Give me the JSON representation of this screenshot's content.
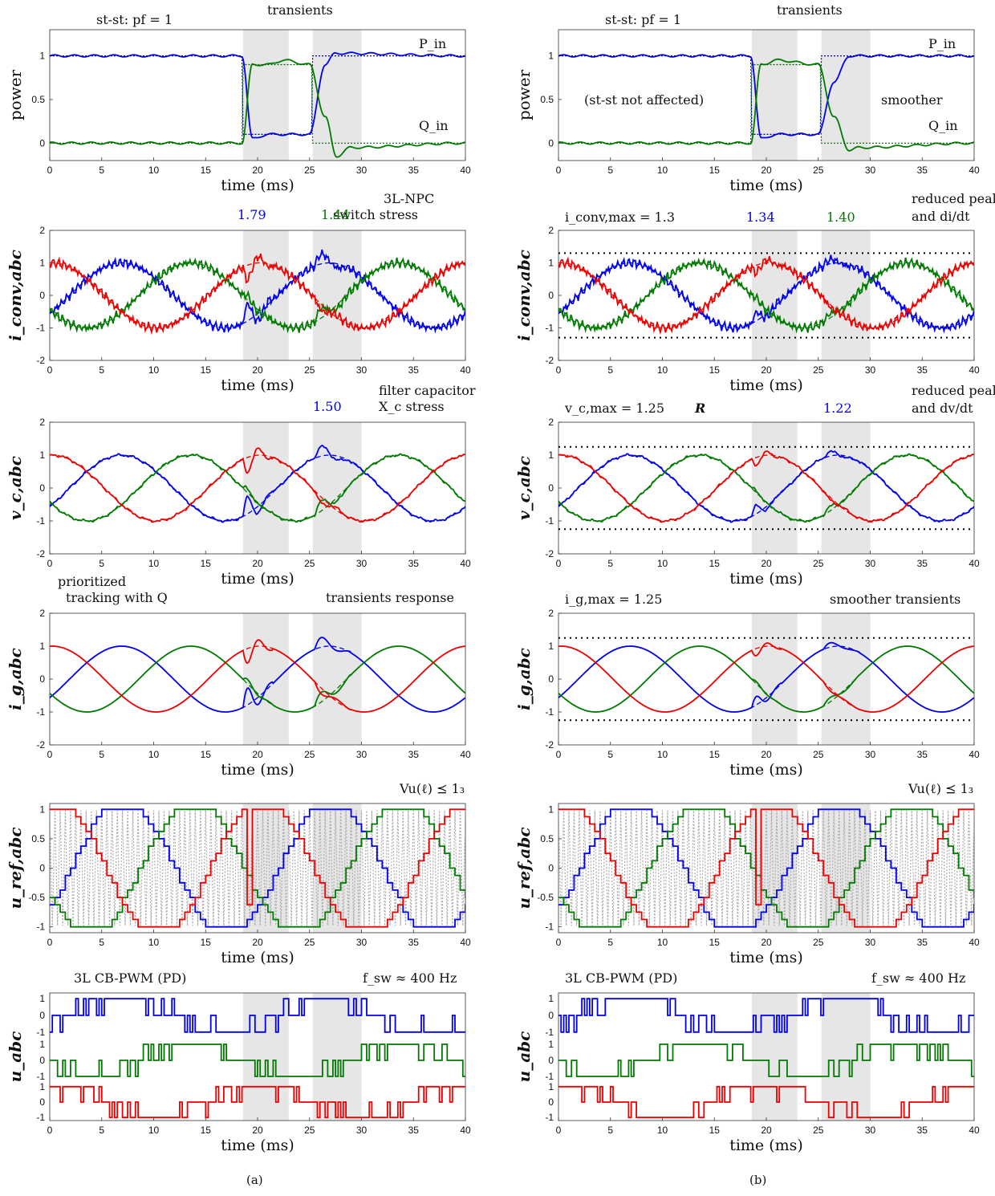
{
  "colors": {
    "a": "#0000ee",
    "b": "#007a00",
    "c": "#ee0000",
    "shade": "#e6e6e6",
    "dot": "#000000",
    "carrier": "#aaaaaa"
  },
  "xlabel": "time (ms)",
  "captions": [
    "(a)",
    "(b)"
  ],
  "ylabels": {
    "power": "power",
    "iconv": "i_conv,abc",
    "vc": "v_c,abc",
    "ig": "i_g,abc",
    "uref": "u_ref,abc",
    "uabc": "u_abc"
  },
  "annotations": {
    "a": {
      "stst": "st-st: pf = 1",
      "transients": "transients",
      "pin": "P_in",
      "qin": "Q_in",
      "iconv_note1": "3L-NPC",
      "iconv_note2": "switch stress",
      "iconv_peak_blue": "1.79",
      "iconv_peak_green": "1.44",
      "vc_note1": "filter capacitor",
      "vc_note2": "X_c stress",
      "vc_peak_blue": "1.50",
      "ig_note_left1": "prioritized",
      "ig_note_left2": "tracking with Q",
      "ig_note_right": "transients response",
      "uref_constraint": "Vu(ℓ) ⪯ 1₃",
      "pwm_label": "3L CB-PWM (PD)",
      "fsw": "f_sw ≈ 400 Hz"
    },
    "b": {
      "stst": "st-st: pf = 1",
      "transients": "transients",
      "pin": "P_in",
      "qin": "Q_in",
      "power_note": "(st-st not affected)",
      "smoother": "smoother",
      "iconv_limit": "i_conv,max = 1.3",
      "iconv_peak_blue": "1.34",
      "iconv_peak_green": "1.40",
      "iconv_note1": "reduced peak",
      "iconv_note2": "and di/dt",
      "vc_limit": "v_c,max = 1.25",
      "vc_R": "R",
      "vc_peak_blue": "1.22",
      "vc_note1": "reduced peak",
      "vc_note2": "and dv/dt",
      "ig_limit": "i_g,max = 1.25",
      "ig_note_right": "smoother transients",
      "uref_constraint": "Vu(ℓ) ⪯ 1₃",
      "pwm_label": "3L CB-PWM (PD)",
      "fsw": "f_sw ≈ 400 Hz"
    }
  },
  "chart_data": [
    {
      "type": "line",
      "panel": "a-power",
      "xlabel": "time (ms)",
      "ylabel": "power",
      "xlim": [
        0,
        40
      ],
      "ylim": [
        -0.2,
        1.3
      ],
      "xticks": [
        0,
        5,
        10,
        15,
        20,
        25,
        30,
        35,
        40
      ],
      "yticks": [
        0,
        0.5,
        1
      ],
      "shaded": [
        [
          18.6,
          23.0
        ],
        [
          25.3,
          30.0
        ]
      ],
      "series": [
        {
          "name": "P_in",
          "points": [
            [
              0,
              1.0
            ],
            [
              18.5,
              1.0
            ],
            [
              19.5,
              0.05
            ],
            [
              21.0,
              0.1
            ],
            [
              25.0,
              0.1
            ],
            [
              26.5,
              0.9
            ],
            [
              27.5,
              1.03
            ],
            [
              40,
              1.0
            ]
          ]
        },
        {
          "name": "Q_in",
          "points": [
            [
              0,
              0.0
            ],
            [
              18.5,
              0.0
            ],
            [
              19.5,
              0.9
            ],
            [
              21.0,
              0.9
            ],
            [
              22.5,
              0.95
            ],
            [
              25.0,
              0.9
            ],
            [
              26.5,
              0.3
            ],
            [
              27.6,
              -0.15
            ],
            [
              29.0,
              -0.05
            ],
            [
              40,
              0.0
            ]
          ]
        }
      ]
    },
    {
      "type": "line",
      "panel": "b-power",
      "xlabel": "time (ms)",
      "ylabel": "power",
      "xlim": [
        0,
        40
      ],
      "ylim": [
        -0.2,
        1.3
      ],
      "xticks": [
        0,
        5,
        10,
        15,
        20,
        25,
        30,
        35,
        40
      ],
      "yticks": [
        0,
        0.5,
        1
      ],
      "shaded": [
        [
          18.6,
          23.0
        ],
        [
          25.3,
          30.0
        ]
      ],
      "series": [
        {
          "name": "P_in",
          "points": [
            [
              0,
              1.0
            ],
            [
              18.5,
              1.0
            ],
            [
              19.5,
              0.05
            ],
            [
              21.0,
              0.1
            ],
            [
              25.0,
              0.1
            ],
            [
              26.5,
              0.7
            ],
            [
              28.0,
              1.0
            ],
            [
              40,
              1.0
            ]
          ]
        },
        {
          "name": "Q_in",
          "points": [
            [
              0,
              0.0
            ],
            [
              18.5,
              0.0
            ],
            [
              19.5,
              0.9
            ],
            [
              21.0,
              0.95
            ],
            [
              25.0,
              0.9
            ],
            [
              26.5,
              0.3
            ],
            [
              28.0,
              -0.08
            ],
            [
              29.0,
              -0.05
            ],
            [
              40,
              0.0
            ]
          ]
        }
      ]
    },
    {
      "type": "line",
      "panel": "a-iconv",
      "ylim": [
        -2,
        2
      ],
      "yticks": [
        -2,
        -1,
        0,
        1,
        2
      ],
      "peaks": {
        "blue": 1.79,
        "green": 1.44
      }
    },
    {
      "type": "line",
      "panel": "b-iconv",
      "ylim": [
        -2,
        2
      ],
      "yticks": [
        -2,
        -1,
        0,
        1,
        2
      ],
      "limit": 1.3,
      "peaks": {
        "blue": 1.34,
        "green": 1.4
      }
    },
    {
      "type": "line",
      "panel": "a-vc",
      "ylim": [
        -2,
        2
      ],
      "yticks": [
        -2,
        -1,
        0,
        1,
        2
      ],
      "peaks": {
        "blue": 1.5
      }
    },
    {
      "type": "line",
      "panel": "b-vc",
      "ylim": [
        -2,
        2
      ],
      "yticks": [
        -2,
        -1,
        0,
        1,
        2
      ],
      "limit": 1.25,
      "peaks": {
        "blue": 1.22
      }
    },
    {
      "type": "line",
      "panel": "a-ig",
      "ylim": [
        -2,
        2
      ],
      "yticks": [
        -2,
        -1,
        0,
        1,
        2
      ]
    },
    {
      "type": "line",
      "panel": "b-ig",
      "ylim": [
        -2,
        2
      ],
      "yticks": [
        -2,
        -1,
        0,
        1,
        2
      ],
      "limit": 1.25
    },
    {
      "type": "line",
      "panel": "a-uref",
      "ylim": [
        -1.1,
        1.1
      ],
      "yticks": [
        -1,
        -0.5,
        0,
        0.5,
        1
      ]
    },
    {
      "type": "line",
      "panel": "b-uref",
      "ylim": [
        -1.1,
        1.1
      ],
      "yticks": [
        -1,
        -0.5,
        0,
        0.5,
        1
      ]
    },
    {
      "type": "line",
      "panel": "a-uabc",
      "yticks": [
        -1,
        0,
        1
      ],
      "fsw_hz": 400
    },
    {
      "type": "line",
      "panel": "b-uabc",
      "yticks": [
        -1,
        0,
        1
      ],
      "fsw_hz": 400
    }
  ]
}
